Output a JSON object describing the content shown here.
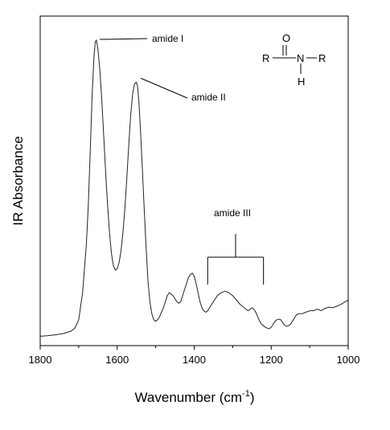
{
  "chart_data": {
    "type": "line",
    "title": "",
    "xlabel_main": "Wavenumber (cm",
    "xlabel_sup": "-1",
    "xlabel_close": ")",
    "ylabel": "IR Absorbance",
    "xlim": [
      1800,
      1000
    ],
    "x_reversed": true,
    "x_ticks": [
      "1800",
      "1600",
      "1400",
      "1200",
      "1000"
    ],
    "y_ticks_shown": false,
    "grid": false,
    "legend": "none",
    "series": [
      {
        "x": [
          1800,
          1780,
          1760,
          1740,
          1720,
          1710,
          1700,
          1690,
          1680,
          1675,
          1670,
          1665,
          1660,
          1657,
          1654,
          1650,
          1645,
          1640,
          1635,
          1630,
          1625,
          1620,
          1615,
          1610,
          1605,
          1600,
          1595,
          1590,
          1585,
          1580,
          1575,
          1570,
          1565,
          1560,
          1555,
          1550,
          1547,
          1544,
          1540,
          1535,
          1530,
          1525,
          1520,
          1515,
          1510,
          1505,
          1500,
          1495,
          1490,
          1485,
          1480,
          1475,
          1470,
          1465,
          1460,
          1455,
          1450,
          1445,
          1440,
          1435,
          1430,
          1425,
          1420,
          1415,
          1410,
          1405,
          1400,
          1395,
          1390,
          1385,
          1380,
          1375,
          1370,
          1365,
          1360,
          1355,
          1350,
          1340,
          1330,
          1320,
          1310,
          1300,
          1290,
          1280,
          1270,
          1260,
          1250,
          1245,
          1240,
          1235,
          1230,
          1225,
          1220,
          1215,
          1210,
          1205,
          1200,
          1195,
          1190,
          1185,
          1180,
          1175,
          1170,
          1165,
          1160,
          1155,
          1150,
          1145,
          1140,
          1135,
          1130,
          1120,
          1110,
          1100,
          1090,
          1080,
          1070,
          1060,
          1050,
          1040,
          1030,
          1020,
          1010,
          1000
        ],
        "y": [
          0.015,
          0.017,
          0.02,
          0.024,
          0.032,
          0.042,
          0.07,
          0.16,
          0.32,
          0.45,
          0.63,
          0.82,
          0.95,
          0.995,
          1.0,
          0.97,
          0.9,
          0.8,
          0.68,
          0.56,
          0.45,
          0.36,
          0.29,
          0.25,
          0.235,
          0.24,
          0.26,
          0.3,
          0.36,
          0.44,
          0.54,
          0.65,
          0.75,
          0.82,
          0.855,
          0.86,
          0.845,
          0.8,
          0.71,
          0.58,
          0.44,
          0.31,
          0.2,
          0.13,
          0.09,
          0.07,
          0.065,
          0.07,
          0.08,
          0.095,
          0.11,
          0.13,
          0.15,
          0.16,
          0.155,
          0.15,
          0.14,
          0.13,
          0.125,
          0.13,
          0.15,
          0.17,
          0.19,
          0.21,
          0.22,
          0.225,
          0.215,
          0.19,
          0.16,
          0.13,
          0.11,
          0.1,
          0.095,
          0.1,
          0.11,
          0.12,
          0.13,
          0.15,
          0.16,
          0.165,
          0.16,
          0.15,
          0.135,
          0.12,
          0.11,
          0.1,
          0.11,
          0.105,
          0.095,
          0.08,
          0.065,
          0.055,
          0.05,
          0.045,
          0.042,
          0.04,
          0.045,
          0.055,
          0.065,
          0.07,
          0.072,
          0.07,
          0.06,
          0.052,
          0.048,
          0.05,
          0.055,
          0.065,
          0.075,
          0.085,
          0.09,
          0.09,
          0.095,
          0.1,
          0.1,
          0.105,
          0.1,
          0.108,
          0.112,
          0.11,
          0.115,
          0.12,
          0.128,
          0.135
        ]
      }
    ],
    "annotations": [
      {
        "text": "amide I",
        "x": 1654,
        "y": 1.0
      },
      {
        "text": "amide II",
        "x": 1547,
        "y": 0.86
      },
      {
        "text": "amide III",
        "x_range": [
          1365,
          1220
        ]
      }
    ]
  },
  "structure": {
    "o": "O",
    "r_left": "R",
    "n": "N",
    "r_right": "R",
    "h": "H"
  }
}
